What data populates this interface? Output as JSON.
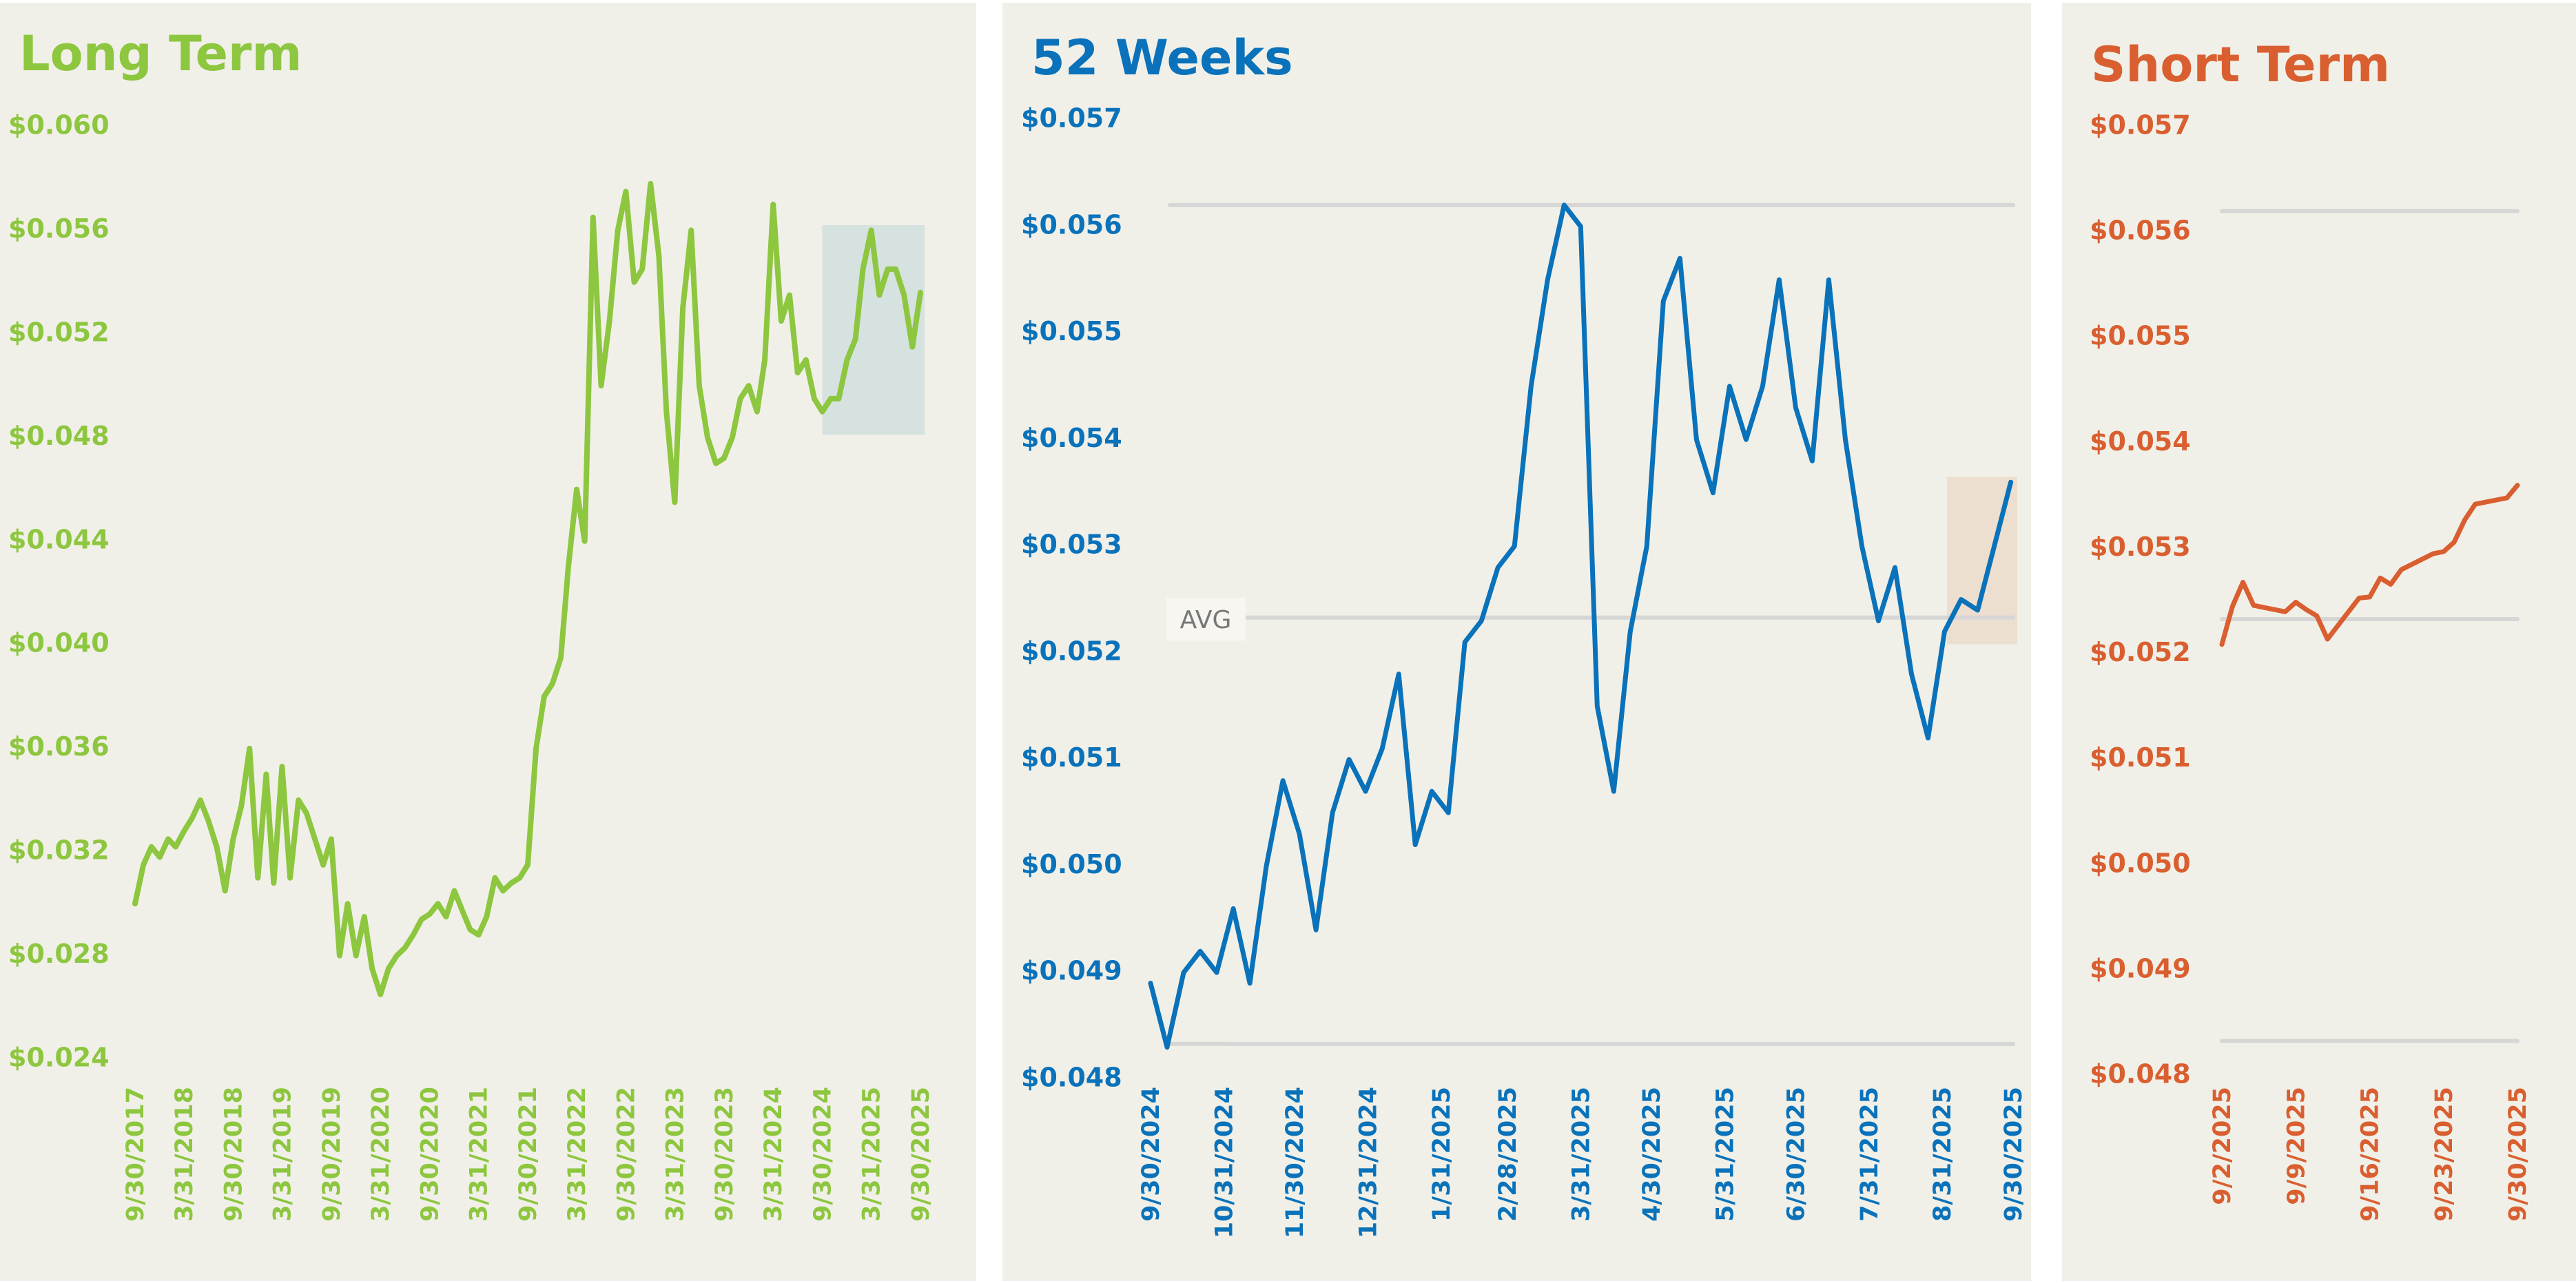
{
  "colors": {
    "background": "#f1f0e8",
    "reference_line": "#d6d6d6",
    "long_term": "#8dc63f",
    "weeks52": "#0a72ba",
    "short_term": "#d95f30"
  },
  "chart_data": [
    {
      "id": "long",
      "type": "line",
      "title": "Long Term",
      "ylim": [
        0.024,
        0.06
      ],
      "y_tick_values": [
        0.06,
        0.056,
        0.052,
        0.048,
        0.044,
        0.04,
        0.036,
        0.032,
        0.028,
        0.024
      ],
      "y_tick_labels": [
        "$0.060",
        "$0.056",
        "$0.052",
        "$0.048",
        "$0.044",
        "$0.040",
        "$0.036",
        "$0.032",
        "$0.028",
        "$0.024"
      ],
      "x_ticks": [
        "9/30/2017",
        "3/31/2018",
        "9/30/2018",
        "3/31/2019",
        "9/30/2019",
        "3/31/2020",
        "9/30/2020",
        "3/31/2021",
        "9/30/2021",
        "3/31/2022",
        "9/30/2022",
        "3/31/2023",
        "9/30/2023",
        "3/31/2024",
        "9/30/2024",
        "3/31/2025",
        "9/30/2025"
      ],
      "xlim": [
        "9/30/2017",
        "9/30/2025"
      ],
      "series": {
        "name": "Long Term",
        "x_start": "9/30/2017",
        "x_step": "month",
        "values": [
          0.03,
          0.0315,
          0.0322,
          0.0318,
          0.0325,
          0.0322,
          0.0328,
          0.0333,
          0.034,
          0.0332,
          0.0322,
          0.0305,
          0.0325,
          0.0338,
          0.036,
          0.031,
          0.035,
          0.0308,
          0.0353,
          0.031,
          0.034,
          0.0335,
          0.0325,
          0.0315,
          0.0325,
          0.028,
          0.03,
          0.028,
          0.0295,
          0.0275,
          0.0265,
          0.0275,
          0.028,
          0.0283,
          0.0288,
          0.0294,
          0.0296,
          0.03,
          0.0295,
          0.0305,
          0.0297,
          0.029,
          0.0288,
          0.0295,
          0.031,
          0.0305,
          0.0308,
          0.031,
          0.0315,
          0.036,
          0.038,
          0.0385,
          0.0395,
          0.043,
          0.046,
          0.044,
          0.0565,
          0.05,
          0.0525,
          0.056,
          0.0575,
          0.054,
          0.0545,
          0.0578,
          0.055,
          0.049,
          0.0455,
          0.053,
          0.056,
          0.05,
          0.048,
          0.047,
          0.0472,
          0.048,
          0.0495,
          0.05,
          0.049,
          0.051,
          0.057,
          0.0525,
          0.0535,
          0.0505,
          0.051,
          0.0495,
          0.049,
          0.0495,
          0.0495,
          0.051,
          0.0518,
          0.0545,
          0.056,
          0.0535,
          0.0545,
          0.0545,
          0.0535,
          0.0515,
          0.0536
        ]
      },
      "highlight": {
        "x_from": "9/30/2024",
        "x_to": "9/30/2025",
        "y_from": 0.0481,
        "y_to": 0.0562
      }
    },
    {
      "id": "weeks52",
      "type": "line",
      "title": "52 Weeks",
      "ylim": [
        0.048,
        0.057
      ],
      "y_tick_values": [
        0.057,
        0.056,
        0.055,
        0.054,
        0.053,
        0.052,
        0.051,
        0.05,
        0.049,
        0.048
      ],
      "y_tick_labels": [
        "$0.057",
        "$0.056",
        "$0.055",
        "$0.054",
        "$0.053",
        "$0.052",
        "$0.051",
        "$0.050",
        "$0.049",
        "$0.048"
      ],
      "x_ticks": [
        "9/30/2024",
        "10/31/2024",
        "11/30/2024",
        "12/31/2024",
        "1/31/2025",
        "2/28/2025",
        "3/31/2025",
        "4/30/2025",
        "5/31/2025",
        "6/30/2025",
        "7/31/2025",
        "8/31/2025",
        "9/30/2025"
      ],
      "xlim": [
        "9/30/2024",
        "9/30/2025"
      ],
      "series": {
        "name": "52 Weeks",
        "x_start": "9/30/2024",
        "x_step": "week",
        "values": [
          0.0489,
          0.0483,
          0.049,
          0.0492,
          0.049,
          0.0496,
          0.0489,
          0.05,
          0.0508,
          0.0503,
          0.0494,
          0.0505,
          0.051,
          0.0507,
          0.0511,
          0.0518,
          0.0502,
          0.0507,
          0.0505,
          0.0521,
          0.0523,
          0.0528,
          0.053,
          0.0545,
          0.0555,
          0.0562,
          0.056,
          0.0515,
          0.0507,
          0.0522,
          0.053,
          0.0553,
          0.0557,
          0.054,
          0.0535,
          0.0545,
          0.054,
          0.0545,
          0.0555,
          0.0543,
          0.0538,
          0.0555,
          0.054,
          0.053,
          0.0523,
          0.0528,
          0.0518,
          0.0512,
          0.0522,
          0.0525,
          0.0524,
          0.053,
          0.0536
        ]
      },
      "reference_lines": {
        "max": 0.0562,
        "avg": 0.05233,
        "min": 0.04833
      },
      "avg_label": "AVG",
      "highlight": {
        "x_from": "9/2/2025",
        "x_to": "9/30/2025",
        "y_from": 0.05208,
        "y_to": 0.05365
      }
    },
    {
      "id": "short",
      "type": "line",
      "title": "Short Term",
      "ylim": [
        0.048,
        0.057
      ],
      "y_tick_values": [
        0.057,
        0.056,
        0.055,
        0.054,
        0.053,
        0.052,
        0.051,
        0.05,
        0.049,
        0.048
      ],
      "y_tick_labels": [
        "$0.057",
        "$0.056",
        "$0.055",
        "$0.054",
        "$0.053",
        "$0.052",
        "$0.051",
        "$0.050",
        "$0.049",
        "$0.048"
      ],
      "x_ticks": [
        "9/2/2025",
        "9/9/2025",
        "9/16/2025",
        "9/23/2025",
        "9/30/2025"
      ],
      "xlim": [
        "9/2/2025",
        "9/30/2025"
      ],
      "series": {
        "name": "Short Term",
        "x": [
          "9/2/2025",
          "9/3/2025",
          "9/4/2025",
          "9/5/2025",
          "9/8/2025",
          "9/9/2025",
          "9/10/2025",
          "9/11/2025",
          "9/12/2025",
          "9/15/2025",
          "9/16/2025",
          "9/17/2025",
          "9/18/2025",
          "9/19/2025",
          "9/22/2025",
          "9/23/2025",
          "9/24/2025",
          "9/25/2025",
          "9/26/2025",
          "9/29/2025",
          "9/30/2025"
        ],
        "values": [
          0.05209,
          0.05245,
          0.05268,
          0.05246,
          0.0524,
          0.05249,
          0.05242,
          0.05236,
          0.05214,
          0.05253,
          0.05254,
          0.05272,
          0.05266,
          0.0528,
          0.05295,
          0.05297,
          0.05306,
          0.05327,
          0.05342,
          0.05348,
          0.0536
        ]
      },
      "reference_lines": {
        "max": 0.0562,
        "avg": 0.05233,
        "min": 0.04833
      }
    }
  ]
}
